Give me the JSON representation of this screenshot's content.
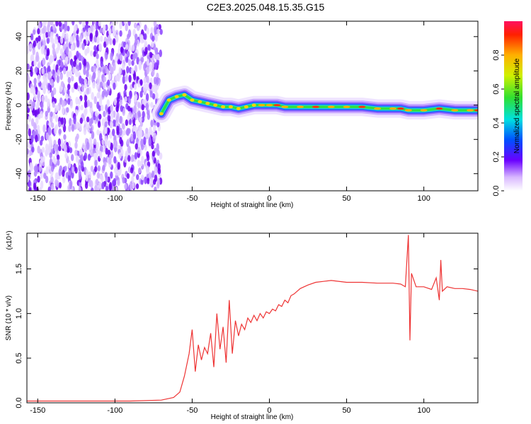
{
  "title": "C2E3.2025.048.15.35.G15",
  "chart_data": [
    {
      "type": "heatmap",
      "xlabel": "Height of straight line (km)",
      "ylabel": "Frequency (Hz)",
      "xlim": [
        -157,
        135
      ],
      "ylim": [
        -50,
        49
      ],
      "xticks": [
        -150,
        -100,
        -50,
        0,
        50,
        100
      ],
      "yticks": [
        -40,
        -20,
        0,
        20,
        40
      ],
      "colorbar": {
        "label": "Normalized spectral amplitude",
        "range": [
          0,
          1
        ],
        "ticks": [
          "0.0",
          "0.2",
          "0.4",
          "0.6",
          "0.8"
        ]
      },
      "noise_region_x": [
        -157,
        -70
      ],
      "ridge": {
        "x": [
          -70,
          -65,
          -60,
          -55,
          -50,
          -45,
          -40,
          -35,
          -30,
          -25,
          -20,
          -15,
          -10,
          -5,
          0,
          5,
          10,
          20,
          30,
          40,
          50,
          60,
          70,
          80,
          85,
          90,
          100,
          110,
          120,
          130,
          135
        ],
        "freq": [
          -5,
          3,
          5,
          6,
          3,
          2,
          1,
          0,
          -1,
          -1,
          -2,
          -1,
          0,
          0,
          0,
          0,
          -1,
          -1,
          -1,
          -1,
          -1,
          -1,
          -2,
          -2,
          -2,
          -3,
          -3,
          -2,
          -3,
          -3,
          -3
        ]
      }
    },
    {
      "type": "line",
      "xlabel": "Height of straight line (km)",
      "ylabel": "SNR (10 * v/v)",
      "y_multiplier": "(x10⁴)",
      "xlim": [
        -157,
        135
      ],
      "ylim": [
        0,
        1.9
      ],
      "xticks": [
        -150,
        -100,
        -50,
        0,
        50,
        100
      ],
      "yticks": [
        0.0,
        0.5,
        1.0,
        1.5
      ],
      "series": [
        {
          "color": "#ee3333",
          "x": [
            -157,
            -120,
            -90,
            -70,
            -62,
            -58,
            -55,
            -52,
            -50,
            -48,
            -46,
            -44,
            -42,
            -40,
            -38,
            -36,
            -34,
            -32,
            -30,
            -28,
            -26,
            -24,
            -22,
            -20,
            -18,
            -16,
            -14,
            -12,
            -10,
            -8,
            -6,
            -4,
            -2,
            0,
            2,
            4,
            6,
            8,
            10,
            12,
            14,
            16,
            18,
            20,
            25,
            30,
            35,
            40,
            50,
            60,
            70,
            80,
            85,
            88,
            90,
            91,
            92,
            95,
            100,
            105,
            108,
            110,
            111,
            112,
            115,
            120,
            125,
            130,
            135
          ],
          "y": [
            0.02,
            0.02,
            0.02,
            0.03,
            0.06,
            0.12,
            0.3,
            0.55,
            0.82,
            0.35,
            0.65,
            0.48,
            0.62,
            0.55,
            0.78,
            0.4,
            1.0,
            0.6,
            0.85,
            0.45,
            1.15,
            0.55,
            0.92,
            0.75,
            0.88,
            0.82,
            0.95,
            0.9,
            0.98,
            0.92,
            1.0,
            0.95,
            1.02,
            1.0,
            1.05,
            1.03,
            1.1,
            1.08,
            1.15,
            1.12,
            1.2,
            1.22,
            1.25,
            1.28,
            1.32,
            1.35,
            1.36,
            1.37,
            1.35,
            1.35,
            1.34,
            1.34,
            1.33,
            1.3,
            1.88,
            0.7,
            1.45,
            1.3,
            1.3,
            1.27,
            1.4,
            1.15,
            1.6,
            1.25,
            1.3,
            1.28,
            1.28,
            1.27,
            1.25
          ]
        }
      ]
    }
  ]
}
